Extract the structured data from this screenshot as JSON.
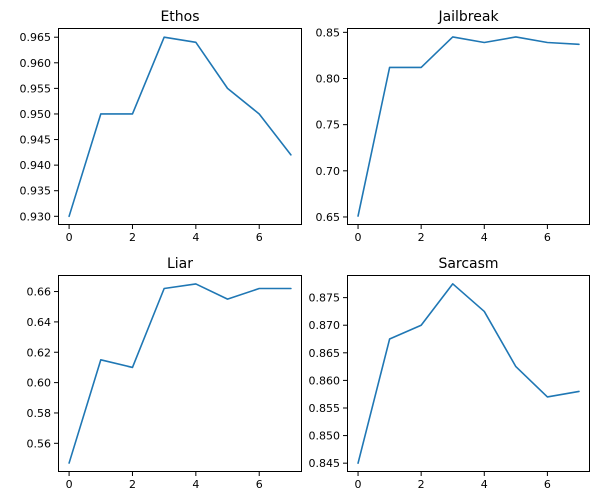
{
  "figure": {
    "line_color": "#1f77b4",
    "background": "#ffffff"
  },
  "chart_data": [
    {
      "type": "line",
      "title": "Ethos",
      "xlabel": "",
      "ylabel": "",
      "x": [
        0,
        1,
        2,
        3,
        4,
        5,
        6,
        7
      ],
      "series": [
        {
          "values": [
            0.93,
            0.95,
            0.95,
            0.965,
            0.964,
            0.955,
            0.95,
            0.942
          ]
        }
      ],
      "xlim": [
        -0.35,
        7.35
      ],
      "ylim": [
        0.9283,
        0.9668
      ],
      "xticks": [
        0,
        2,
        4,
        6
      ],
      "xtick_labels": [
        "0",
        "2",
        "4",
        "6"
      ],
      "yticks": [
        0.93,
        0.935,
        0.94,
        0.945,
        0.95,
        0.955,
        0.96,
        0.965
      ],
      "ytick_labels": [
        "0.930",
        "0.935",
        "0.940",
        "0.945",
        "0.950",
        "0.955",
        "0.960",
        "0.965"
      ],
      "grid": false,
      "legend": "none"
    },
    {
      "type": "line",
      "title": "Jailbreak",
      "xlabel": "",
      "ylabel": "",
      "x": [
        0,
        1,
        2,
        3,
        4,
        5,
        6,
        7
      ],
      "series": [
        {
          "values": [
            0.651,
            0.812,
            0.812,
            0.845,
            0.839,
            0.845,
            0.839,
            0.837
          ]
        }
      ],
      "xlim": [
        -0.35,
        7.35
      ],
      "ylim": [
        0.6413,
        0.8547
      ],
      "xticks": [
        0,
        2,
        4,
        6
      ],
      "xtick_labels": [
        "0",
        "2",
        "4",
        "6"
      ],
      "yticks": [
        0.65,
        0.7,
        0.75,
        0.8,
        0.85
      ],
      "ytick_labels": [
        "0.65",
        "0.70",
        "0.75",
        "0.80",
        "0.85"
      ],
      "grid": false,
      "legend": "none"
    },
    {
      "type": "line",
      "title": "Liar",
      "xlabel": "",
      "ylabel": "",
      "x": [
        0,
        1,
        2,
        3,
        4,
        5,
        6,
        7
      ],
      "series": [
        {
          "values": [
            0.547,
            0.615,
            0.61,
            0.662,
            0.665,
            0.655,
            0.662,
            0.662
          ]
        }
      ],
      "xlim": [
        -0.35,
        7.35
      ],
      "ylim": [
        0.5411,
        0.6709
      ],
      "xticks": [
        0,
        2,
        4,
        6
      ],
      "xtick_labels": [
        "0",
        "2",
        "4",
        "6"
      ],
      "yticks": [
        0.56,
        0.58,
        0.6,
        0.62,
        0.64,
        0.66
      ],
      "ytick_labels": [
        "0.56",
        "0.58",
        "0.60",
        "0.62",
        "0.64",
        "0.66"
      ],
      "grid": false,
      "legend": "none"
    },
    {
      "type": "line",
      "title": "Sarcasm",
      "xlabel": "",
      "ylabel": "",
      "x": [
        0,
        1,
        2,
        3,
        4,
        5,
        6,
        7
      ],
      "series": [
        {
          "values": [
            0.845,
            0.8675,
            0.87,
            0.8775,
            0.8725,
            0.8625,
            0.857,
            0.858
          ]
        }
      ],
      "xlim": [
        -0.35,
        7.35
      ],
      "ylim": [
        0.8434,
        0.8791
      ],
      "xticks": [
        0,
        2,
        4,
        6
      ],
      "xtick_labels": [
        "0",
        "2",
        "4",
        "6"
      ],
      "yticks": [
        0.845,
        0.85,
        0.855,
        0.86,
        0.865,
        0.87,
        0.875
      ],
      "ytick_labels": [
        "0.845",
        "0.850",
        "0.855",
        "0.860",
        "0.865",
        "0.870",
        "0.875"
      ],
      "grid": false,
      "legend": "none"
    }
  ]
}
